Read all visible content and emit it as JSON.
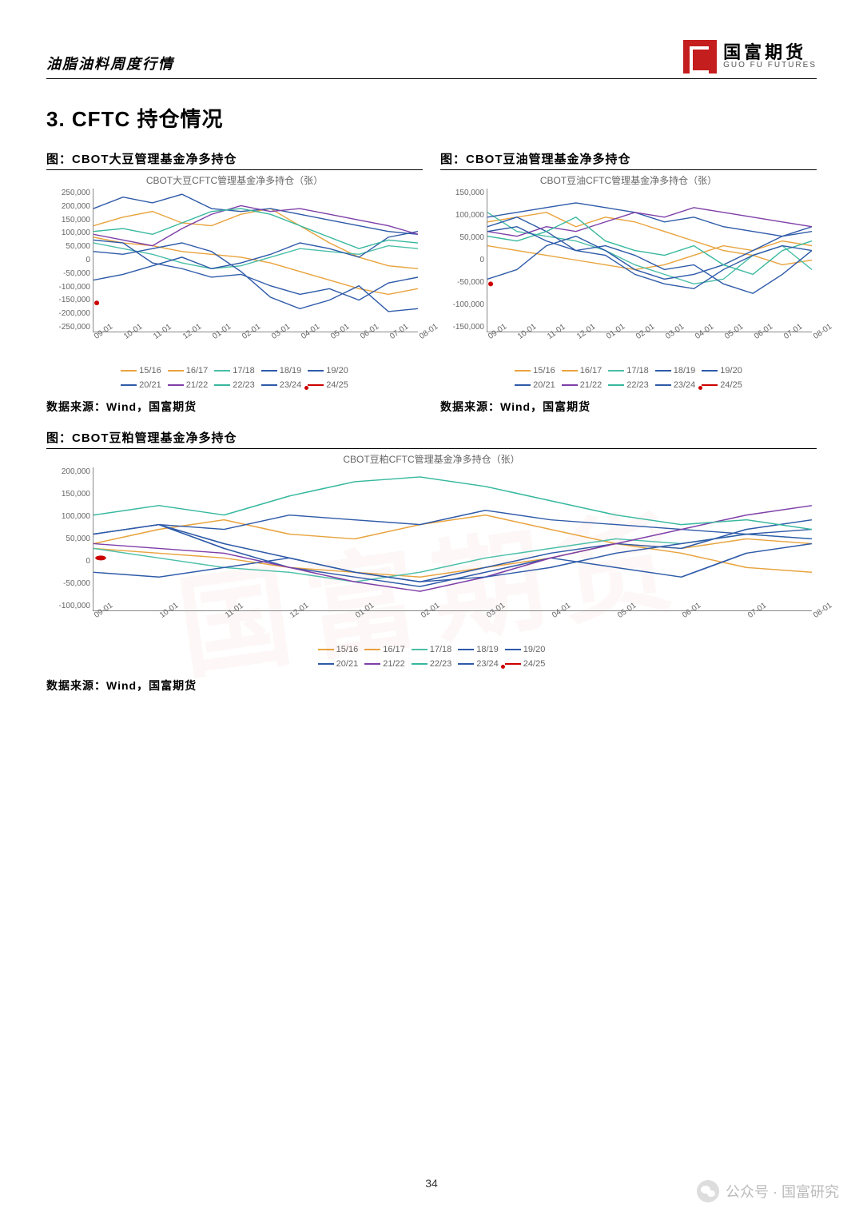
{
  "header": {
    "left": "油脂油料周度行情",
    "logo_cn": "国富期货",
    "logo_en": "GUO FU FUTURES",
    "logo_color": "#c41e1e"
  },
  "section_title": "3. CFTC 持仓情况",
  "page_number": "34",
  "footer": {
    "text": "公众号 · 国富研究"
  },
  "series_meta": {
    "labels": [
      "15/16",
      "16/17",
      "17/18",
      "18/19",
      "19/20",
      "20/21",
      "21/22",
      "22/23",
      "23/24",
      "24/25"
    ],
    "colors": [
      "#e8a33d",
      "#e8a33d",
      "#4bbfa8",
      "#2e5aa8",
      "#2e5aa8",
      "#2e5aa8",
      "#7e3fa8",
      "#36b89e",
      "#2e5aa8",
      "#cc0000"
    ],
    "last_is_marker": true
  },
  "xaxis_ticks": [
    "09-01",
    "10-01",
    "11-01",
    "12-01",
    "01-01",
    "02-01",
    "03-01",
    "04-01",
    "05-01",
    "06-01",
    "07-01",
    "08-01"
  ],
  "source_text": "数据来源：Wind，国富期货",
  "charts": [
    {
      "caption": "图：CBOT大豆管理基金净多持仓",
      "subtitle": "CBOT大豆CFTC管理基金净多持仓（张）",
      "ylim": [
        -250000,
        250000
      ],
      "yticks": [
        "250,000",
        "200,000",
        "150,000",
        "100,000",
        "50,000",
        "0",
        "-50,000",
        "-100,000",
        "-150,000",
        "-200,000",
        "-250,000"
      ],
      "series": [
        [
          80000,
          60000,
          50000,
          30000,
          20000,
          10000,
          -10000,
          -40000,
          -70000,
          -100000,
          -120000,
          -100000
        ],
        [
          120000,
          150000,
          170000,
          130000,
          120000,
          160000,
          180000,
          120000,
          60000,
          10000,
          -20000,
          -30000
        ],
        [
          60000,
          40000,
          20000,
          -10000,
          -30000,
          -20000,
          10000,
          40000,
          30000,
          20000,
          50000,
          40000
        ],
        [
          70000,
          60000,
          -10000,
          -30000,
          -60000,
          -50000,
          -90000,
          -120000,
          -100000,
          -140000,
          -80000,
          -60000
        ],
        [
          -70000,
          -50000,
          -20000,
          10000,
          -30000,
          -10000,
          20000,
          60000,
          40000,
          10000,
          80000,
          100000
        ],
        [
          180000,
          220000,
          200000,
          230000,
          180000,
          170000,
          180000,
          160000,
          140000,
          120000,
          100000,
          90000
        ],
        [
          90000,
          70000,
          50000,
          110000,
          160000,
          190000,
          170000,
          180000,
          160000,
          140000,
          120000,
          90000
        ],
        [
          100000,
          110000,
          90000,
          130000,
          170000,
          180000,
          160000,
          120000,
          80000,
          40000,
          70000,
          60000
        ],
        [
          30000,
          20000,
          40000,
          60000,
          30000,
          -40000,
          -130000,
          -170000,
          -140000,
          -90000,
          -180000,
          -170000
        ],
        [
          -150000
        ]
      ]
    },
    {
      "caption": "图：CBOT豆油管理基金净多持仓",
      "subtitle": "CBOT豆油CFTC管理基金净多持仓（张）",
      "ylim": [
        -150000,
        150000
      ],
      "yticks": [
        "150,000",
        "100,000",
        "50,000",
        "0",
        "-50,000",
        "-100,000",
        "-150,000"
      ],
      "series": [
        [
          30000,
          20000,
          10000,
          0,
          -10000,
          -20000,
          -10000,
          10000,
          30000,
          20000,
          40000,
          30000
        ],
        [
          80000,
          90000,
          100000,
          70000,
          90000,
          80000,
          60000,
          40000,
          20000,
          10000,
          -10000,
          0
        ],
        [
          100000,
          60000,
          50000,
          40000,
          20000,
          -10000,
          -30000,
          -50000,
          -40000,
          10000,
          30000,
          -20000
        ],
        [
          70000,
          90000,
          60000,
          20000,
          30000,
          10000,
          -20000,
          -10000,
          -50000,
          -70000,
          -30000,
          20000
        ],
        [
          -40000,
          -20000,
          30000,
          50000,
          20000,
          -20000,
          -40000,
          -30000,
          -10000,
          20000,
          50000,
          70000
        ],
        [
          90000,
          100000,
          110000,
          120000,
          110000,
          100000,
          80000,
          90000,
          70000,
          60000,
          50000,
          60000
        ],
        [
          60000,
          50000,
          70000,
          60000,
          80000,
          100000,
          90000,
          110000,
          100000,
          90000,
          80000,
          70000
        ],
        [
          50000,
          40000,
          60000,
          90000,
          40000,
          20000,
          10000,
          30000,
          -10000,
          -30000,
          20000,
          40000
        ],
        [
          60000,
          70000,
          40000,
          20000,
          10000,
          -30000,
          -50000,
          -60000,
          -20000,
          10000,
          30000,
          20000
        ],
        [
          -50000
        ]
      ]
    },
    {
      "caption": "图：CBOT豆粕管理基金净多持仓",
      "subtitle": "CBOT豆粕CFTC管理基金净多持仓（张）",
      "ylim": [
        -100000,
        200000
      ],
      "yticks": [
        "200,000",
        "150,000",
        "100,000",
        "50,000",
        "0",
        "-50,000",
        "-100,000"
      ],
      "series": [
        [
          30000,
          20000,
          10000,
          -10000,
          -20000,
          -30000,
          -10000,
          10000,
          40000,
          30000,
          50000,
          40000
        ],
        [
          40000,
          70000,
          90000,
          60000,
          50000,
          80000,
          100000,
          70000,
          40000,
          20000,
          -10000,
          -20000
        ],
        [
          30000,
          10000,
          -10000,
          -20000,
          -40000,
          -20000,
          10000,
          30000,
          50000,
          40000,
          60000,
          50000
        ],
        [
          60000,
          80000,
          30000,
          -10000,
          -30000,
          -50000,
          -20000,
          10000,
          -10000,
          -30000,
          20000,
          40000
        ],
        [
          -20000,
          -30000,
          -10000,
          10000,
          -20000,
          -40000,
          -10000,
          20000,
          40000,
          30000,
          70000,
          90000
        ],
        [
          60000,
          80000,
          70000,
          100000,
          90000,
          80000,
          110000,
          90000,
          80000,
          70000,
          60000,
          70000
        ],
        [
          40000,
          30000,
          20000,
          -10000,
          -40000,
          -60000,
          -30000,
          10000,
          40000,
          70000,
          100000,
          120000
        ],
        [
          100000,
          120000,
          100000,
          140000,
          170000,
          180000,
          160000,
          130000,
          100000,
          80000,
          90000,
          70000
        ],
        [
          60000,
          80000,
          40000,
          10000,
          -20000,
          -40000,
          -30000,
          -10000,
          20000,
          40000,
          60000,
          50000
        ],
        [
          10000
        ]
      ]
    }
  ]
}
